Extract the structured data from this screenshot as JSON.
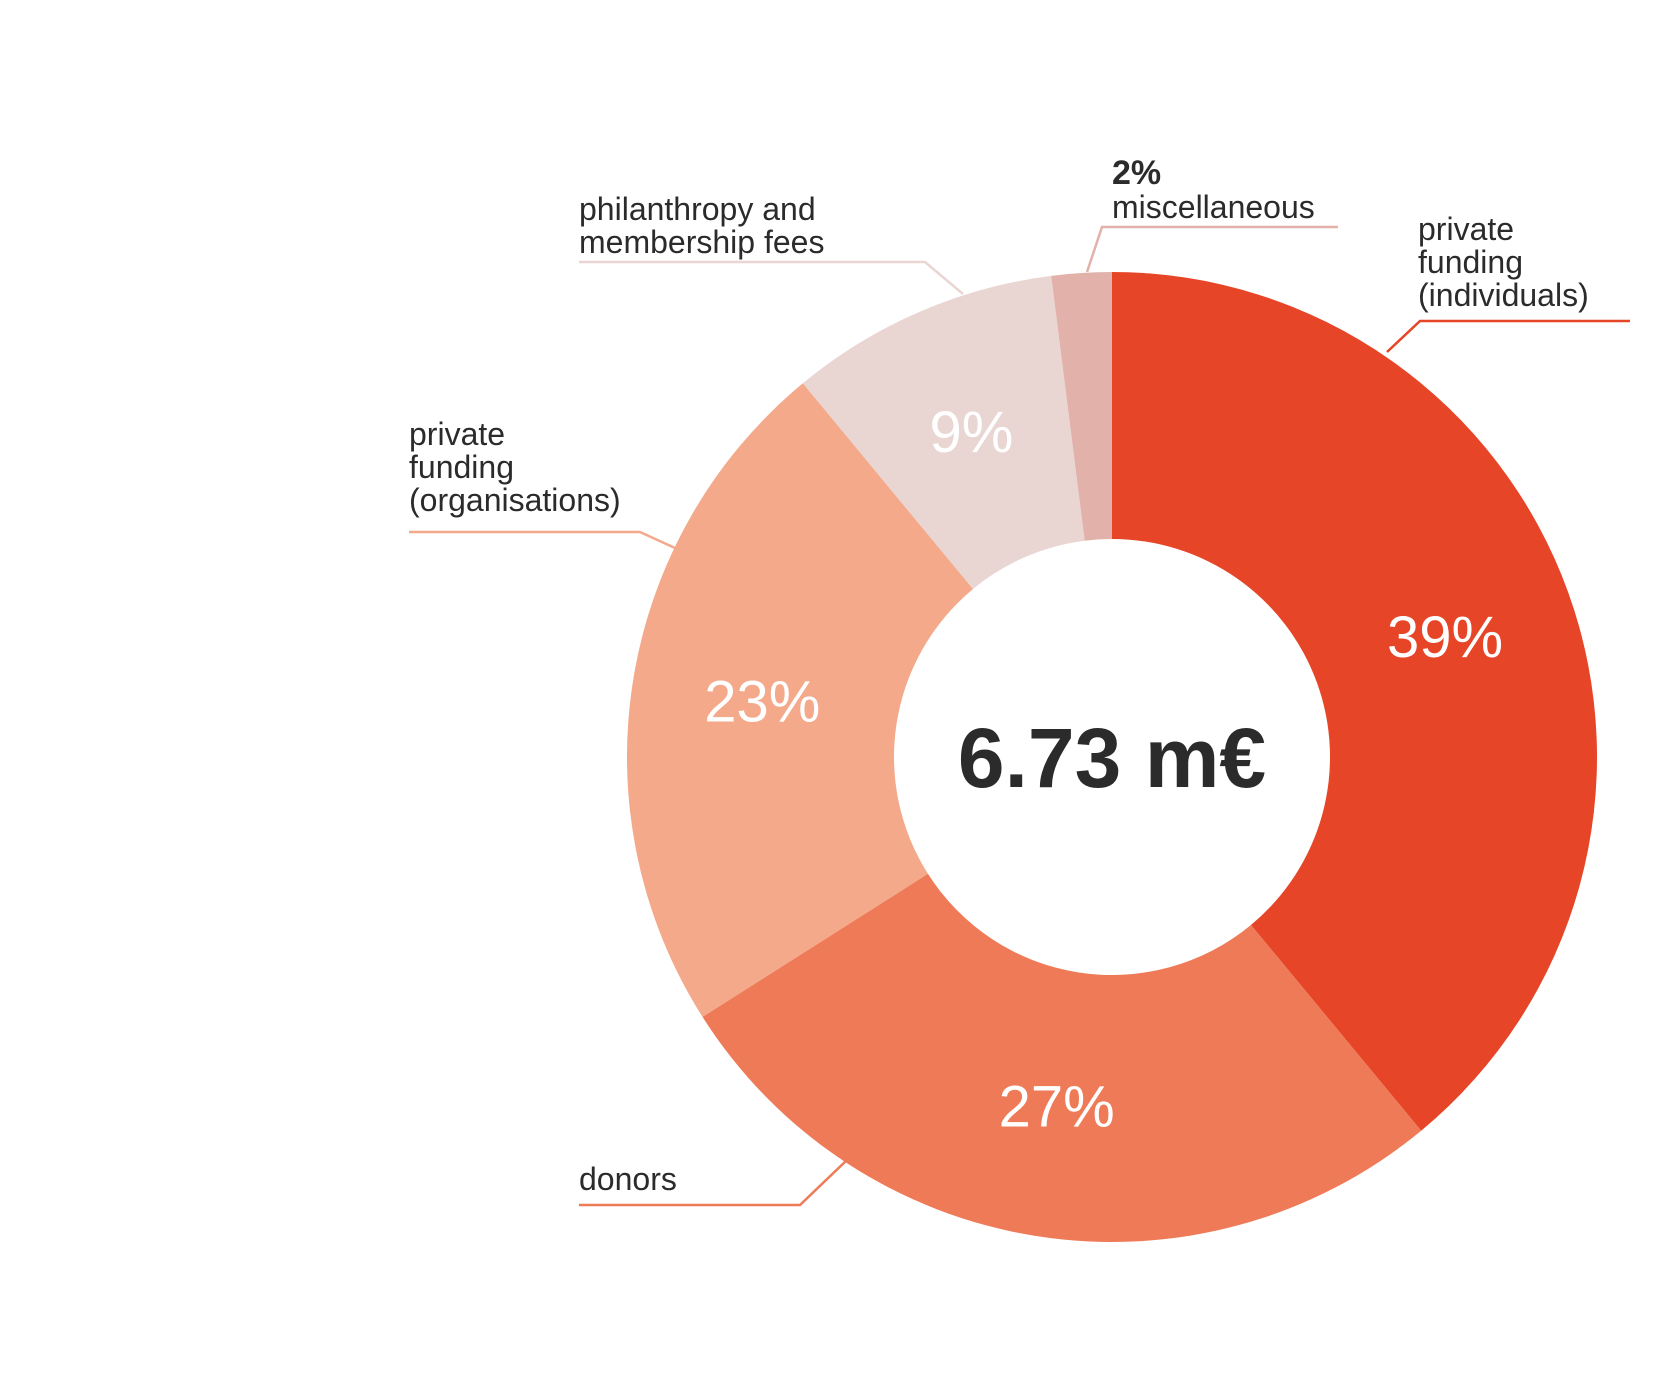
{
  "chart_data": {
    "type": "pie",
    "donut": true,
    "center_label": "6.73 m€",
    "slices": [
      {
        "label_lines": [
          "private",
          "funding",
          "(individuals)"
        ],
        "value": 39,
        "pct_text": "39%",
        "color": "#e64527",
        "leader_color": "#e64527",
        "pct_inside": true
      },
      {
        "label_lines": [
          "donors"
        ],
        "value": 27,
        "pct_text": "27%",
        "color": "#ef7a57",
        "leader_color": "#ef7a57",
        "pct_inside": true
      },
      {
        "label_lines": [
          "private",
          "funding",
          "(organisations)"
        ],
        "value": 23,
        "pct_text": "23%",
        "color": "#f3a98a",
        "leader_color": "#f3a98a",
        "pct_inside": true
      },
      {
        "label_lines": [
          "philanthropy and",
          "membership fees"
        ],
        "value": 9,
        "pct_text": "9%",
        "color": "#e9d6d3",
        "leader_color": "#e9d6d3",
        "pct_inside": true
      },
      {
        "label_lines": [
          "miscellaneous"
        ],
        "value": 2,
        "pct_text": "2%",
        "color": "#e2b1aa",
        "leader_color": "#e2b1aa",
        "pct_inside": false
      }
    ]
  }
}
